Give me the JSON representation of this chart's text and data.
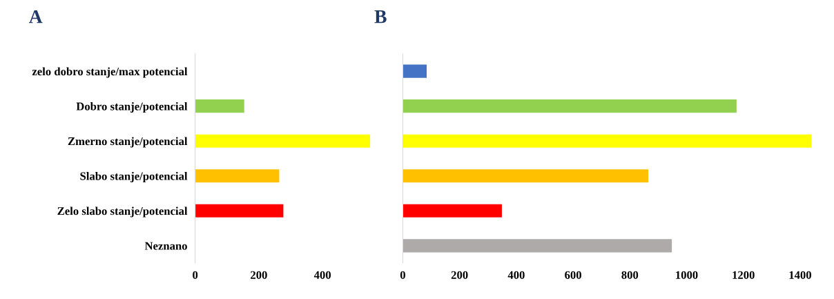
{
  "chart_data": [
    {
      "type": "bar",
      "title": "A",
      "orientation": "horizontal",
      "categories": [
        "zelo dobro stanje/max potencial",
        "Dobro stanje/potencial",
        "Zmerno stanje/potencial",
        "Slabo stanje/potencial",
        "Zelo slabo stanje/potencial",
        "Neznano"
      ],
      "values": [
        0,
        154,
        550,
        264,
        277,
        0
      ],
      "colors": [
        "#4472c4",
        "#92d050",
        "#ffff00",
        "#ffc000",
        "#ff0000",
        "#aeaaaa"
      ],
      "xlim": [
        0,
        550
      ],
      "xticks": [
        0,
        200,
        400
      ],
      "grid": false,
      "legend": false
    },
    {
      "type": "bar",
      "title": "B",
      "orientation": "horizontal",
      "categories": [
        null,
        null,
        null,
        null,
        null,
        null
      ],
      "values": [
        84,
        1176,
        1440,
        865,
        349,
        948
      ],
      "colors": [
        "#4472c4",
        "#92d050",
        "#ffff00",
        "#ffc000",
        "#ff0000",
        "#aeaaaa"
      ],
      "xlim": [
        0,
        1440
      ],
      "xticks": [
        0,
        200,
        400,
        600,
        800,
        1000,
        1200,
        1400
      ],
      "tick_labels": "x",
      "grid": false,
      "legend": false
    }
  ]
}
